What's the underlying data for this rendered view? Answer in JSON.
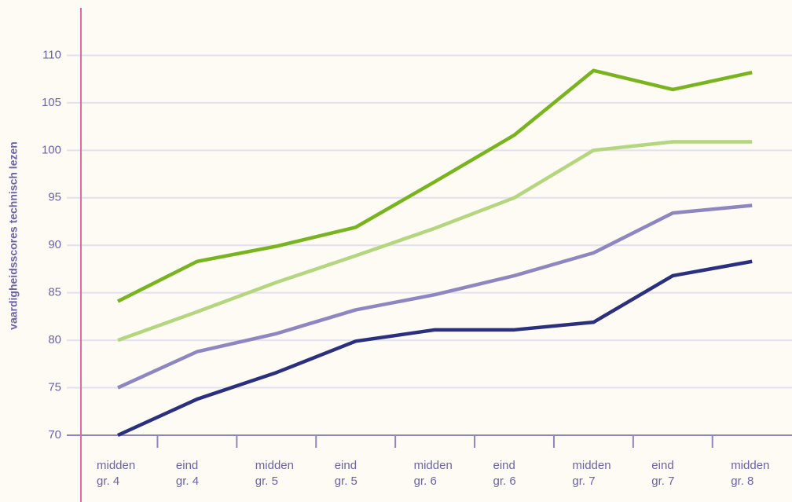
{
  "chart_data": {
    "type": "line",
    "y_label": "vaardigheidsscores technisch lezen",
    "categories": [
      [
        "midden",
        "gr. 4"
      ],
      [
        "eind",
        "gr. 4"
      ],
      [
        "midden",
        "gr. 5"
      ],
      [
        "eind",
        "gr. 5"
      ],
      [
        "midden",
        "gr. 6"
      ],
      [
        "eind",
        "gr. 6"
      ],
      [
        "midden",
        "gr. 7"
      ],
      [
        "eind",
        "gr. 7"
      ],
      [
        "midden",
        "gr. 8"
      ]
    ],
    "series": [
      {
        "color": "#2b2f80",
        "values": [
          70,
          73.8,
          76.6,
          79.9,
          81.1,
          81.1,
          81.9,
          86.8,
          88.3
        ]
      },
      {
        "color": "#8d86c1",
        "values": [
          75,
          78.8,
          80.7,
          83.2,
          84.8,
          86.8,
          89.2,
          93.4,
          94.2
        ]
      },
      {
        "color": "#b4d67f",
        "values": [
          80,
          83,
          86.1,
          88.9,
          91.8,
          95,
          100,
          100.9,
          100.9
        ]
      },
      {
        "color": "#78b41e",
        "values": [
          84.1,
          88.3,
          89.9,
          91.9,
          96.7,
          101.6,
          108.4,
          106.4,
          108.2
        ]
      }
    ],
    "ylim": [
      70,
      115
    ],
    "yticks": [
      70,
      75,
      80,
      85,
      90,
      95,
      100,
      105,
      110
    ],
    "grid": true
  }
}
